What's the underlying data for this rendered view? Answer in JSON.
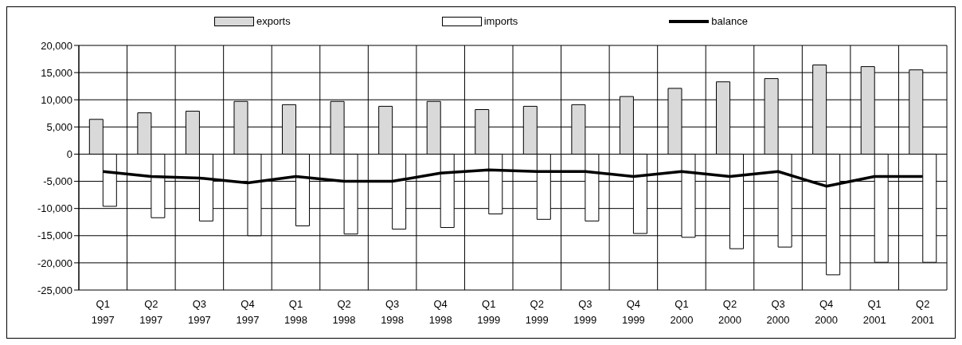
{
  "chart_data": {
    "type": "bar",
    "categories": [
      "Q1 1997",
      "Q2 1997",
      "Q3 1997",
      "Q4 1997",
      "Q1 1998",
      "Q2 1998",
      "Q3 1998",
      "Q4 1998",
      "Q1 1999",
      "Q2 1999",
      "Q3 1999",
      "Q4 1999",
      "Q1 2000",
      "Q2 2000",
      "Q3 2000",
      "Q4 2000",
      "Q1 2001",
      "Q2 2001"
    ],
    "series": [
      {
        "name": "exports",
        "color": "#d9d9d9",
        "values": [
          6400,
          7600,
          7900,
          9700,
          9100,
          9700,
          8800,
          9700,
          8200,
          8800,
          9100,
          10600,
          12100,
          13300,
          13900,
          16400,
          16100,
          15500
        ]
      },
      {
        "name": "imports",
        "color": "#ffffff",
        "values": [
          -9600,
          -11700,
          -12300,
          -15000,
          -13200,
          -14700,
          -13800,
          -13500,
          -11000,
          -12000,
          -12300,
          -14600,
          -15300,
          -17400,
          -17100,
          -22200,
          -19900,
          -19900
        ]
      },
      {
        "name": "balance",
        "type": "line",
        "color": "#000000",
        "values": [
          -3200,
          -4100,
          -4400,
          -5300,
          -4100,
          -5000,
          -5000,
          -3500,
          -2900,
          -3200,
          -3200,
          -4100,
          -3200,
          -4100,
          -3200,
          -5900,
          -4100,
          -4100
        ]
      }
    ],
    "ylim": [
      -25000,
      20000
    ],
    "yticks": [
      {
        "value": -25000,
        "label": "-25,000"
      },
      {
        "value": -20000,
        "label": "-20,000"
      },
      {
        "value": -15000,
        "label": "-15,000"
      },
      {
        "value": -10000,
        "label": "-10,000"
      },
      {
        "value": -5000,
        "label": "-5,000"
      },
      {
        "value": 0,
        "label": "0"
      },
      {
        "value": 5000,
        "label": "5,000"
      },
      {
        "value": 10000,
        "label": "10,000"
      },
      {
        "value": 15000,
        "label": "15,000"
      },
      {
        "value": 20000,
        "label": "20,000"
      }
    ],
    "grid": true,
    "legend": "top",
    "marker": "none",
    "line_style": "solid"
  }
}
